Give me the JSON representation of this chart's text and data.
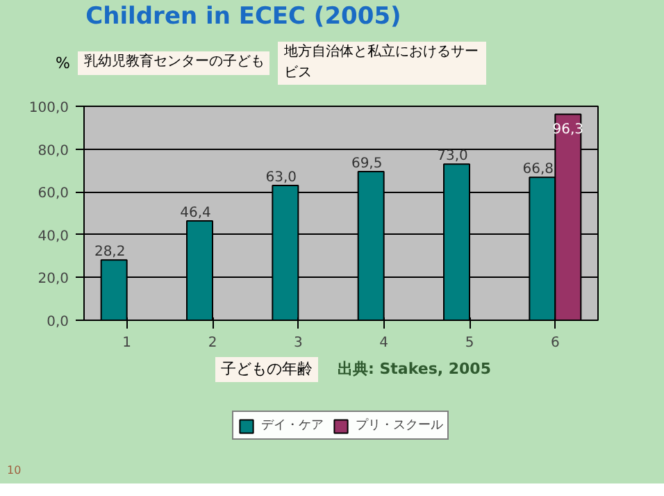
{
  "chart_data": {
    "type": "bar",
    "title": "Children in ECEC (2005)",
    "xlabel": "子どもの年齢",
    "ylabel": "%",
    "categories": [
      "1",
      "2",
      "3",
      "4",
      "5",
      "6"
    ],
    "series": [
      {
        "name": "デイ・ケア",
        "color": "#008080",
        "values": [
          28.2,
          46.4,
          63.0,
          69.5,
          73.0,
          66.8
        ],
        "value_labels": [
          "28,2",
          "46,4",
          "63,0",
          "69,5",
          "73,0",
          "66,8"
        ]
      },
      {
        "name": "プリ・スクール",
        "color": "#993366",
        "values": [
          null,
          null,
          null,
          null,
          null,
          96.3
        ],
        "value_labels": [
          null,
          null,
          null,
          null,
          null,
          "96,3"
        ]
      }
    ],
    "ylim": [
      0,
      100
    ],
    "yticks": [
      {
        "value": 0,
        "label": "0,0"
      },
      {
        "value": 20,
        "label": "20,0"
      },
      {
        "value": 40,
        "label": "40,0"
      },
      {
        "value": 60,
        "label": "60,0"
      },
      {
        "value": 80,
        "label": "80,0"
      },
      {
        "value": 100,
        "label": "100,0"
      }
    ],
    "grid": "y",
    "legend": "bottom",
    "annotations": [
      "乳幼児教育センターの子ども",
      "地方自治体と私立におけるサービス",
      "出典: Stakes, 2005",
      "10"
    ]
  }
}
